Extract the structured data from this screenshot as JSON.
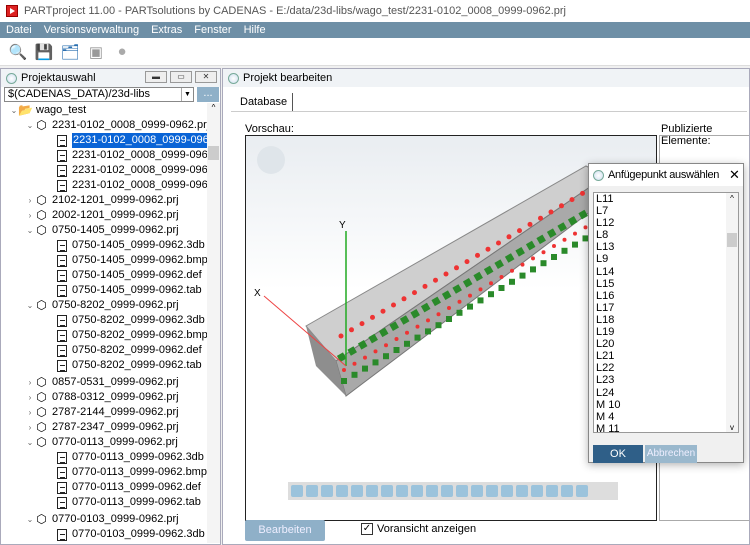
{
  "window": {
    "title": "PARTproject 11.00 - PARTsolutions by CADENAS - E:/data/23d-libs/wago_test/2231-0102_0008_0999-0962.prj"
  },
  "menu": [
    "Datei",
    "Versionsverwaltung",
    "Extras",
    "Fenster",
    "Hilfe"
  ],
  "toolbar": {
    "icons": [
      "search-template-icon",
      "save-icon",
      "save-all-icon",
      "image-icon",
      "globe-icon"
    ]
  },
  "left_panel": {
    "title": "Projektauswahl",
    "path": "$(CADENAS_DATA)/23d-libs",
    "browse_label": "...",
    "tree": [
      {
        "label": "wago_test",
        "level": 0,
        "type": "folder",
        "expanded": true
      },
      {
        "label": "2231-0102_0008_0999-0962.prj",
        "level": 1,
        "type": "project",
        "expanded": true
      },
      {
        "label": "2231-0102_0008_0999-0962.3db",
        "level": 2,
        "type": "file",
        "selected": true
      },
      {
        "label": "2231-0102_0008_0999-0962.bmp",
        "level": 2,
        "type": "file"
      },
      {
        "label": "2231-0102_0008_0999-0962.def",
        "level": 2,
        "type": "file"
      },
      {
        "label": "2231-0102_0008_0999-0962.tab",
        "level": 2,
        "type": "file"
      },
      {
        "label": "2102-1201_0999-0962.prj",
        "level": 1,
        "type": "project",
        "expanded": false
      },
      {
        "label": "2002-1201_0999-0962.prj",
        "level": 1,
        "type": "project",
        "expanded": false
      },
      {
        "label": "0750-1405_0999-0962.prj",
        "level": 1,
        "type": "project",
        "expanded": true
      },
      {
        "label": "0750-1405_0999-0962.3db",
        "level": 2,
        "type": "file"
      },
      {
        "label": "0750-1405_0999-0962.bmp",
        "level": 2,
        "type": "file"
      },
      {
        "label": "0750-1405_0999-0962.def",
        "level": 2,
        "type": "file"
      },
      {
        "label": "0750-1405_0999-0962.tab",
        "level": 2,
        "type": "file"
      },
      {
        "label": "0750-8202_0999-0962.prj",
        "level": 1,
        "type": "project",
        "expanded": true
      },
      {
        "label": "0750-8202_0999-0962.3db",
        "level": 2,
        "type": "file"
      },
      {
        "label": "0750-8202_0999-0962.bmp",
        "level": 2,
        "type": "file"
      },
      {
        "label": "0750-8202_0999-0962.def",
        "level": 2,
        "type": "file"
      },
      {
        "label": "0750-8202_0999-0962.tab",
        "level": 2,
        "type": "file"
      },
      {
        "label": "0857-0531_0999-0962.prj",
        "level": 1,
        "type": "project",
        "expanded": false
      },
      {
        "label": "0788-0312_0999-0962.prj",
        "level": 1,
        "type": "project",
        "expanded": false
      },
      {
        "label": "2787-2144_0999-0962.prj",
        "level": 1,
        "type": "project",
        "expanded": false
      },
      {
        "label": "2787-2347_0999-0962.prj",
        "level": 1,
        "type": "project",
        "expanded": false
      },
      {
        "label": "0770-0113_0999-0962.prj",
        "level": 1,
        "type": "project",
        "expanded": true
      },
      {
        "label": "0770-0113_0999-0962.3db",
        "level": 2,
        "type": "file"
      },
      {
        "label": "0770-0113_0999-0962.bmp",
        "level": 2,
        "type": "file"
      },
      {
        "label": "0770-0113_0999-0962.def",
        "level": 2,
        "type": "file"
      },
      {
        "label": "0770-0113_0999-0962.tab",
        "level": 2,
        "type": "file"
      },
      {
        "label": "0770-0103_0999-0962.prj",
        "level": 1,
        "type": "project",
        "expanded": true
      },
      {
        "label": "0770-0103_0999-0962.3db",
        "level": 2,
        "type": "file"
      }
    ]
  },
  "right_panel": {
    "title": "Projekt bearbeiten",
    "tab": "Database",
    "preview_label": "Vorschau:",
    "published_label": "Publizierte Elemente:",
    "axis_x": "X",
    "axis_y": "Y",
    "edit_button": "Bearbeiten",
    "show_preview_label": "Voransicht anzeigen",
    "show_preview_checked": true
  },
  "dialog": {
    "title": "Anfügepunkt auswählen",
    "items": [
      "L11",
      "L7",
      "L12",
      "L8",
      "L13",
      "L9",
      "L14",
      "L15",
      "L16",
      "L17",
      "L18",
      "L19",
      "L20",
      "L21",
      "L22",
      "L23",
      "L24",
      "M 10",
      "M 4",
      "M 11"
    ],
    "ok": "OK",
    "cancel": "Abbrechen"
  },
  "colors": {
    "menubar": "#6e8fa6",
    "selection": "#0a64d6",
    "primary_button": "#2f5f88",
    "disabled_button": "#9ab8cd"
  }
}
